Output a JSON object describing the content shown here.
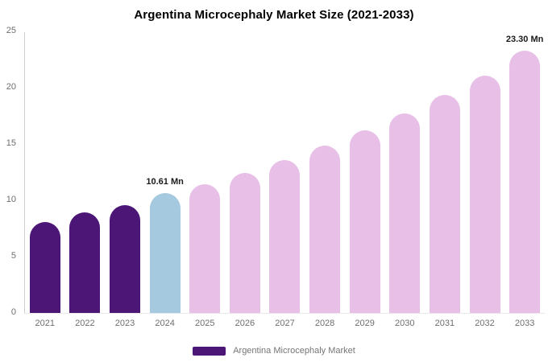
{
  "title": "Argentina Microcephaly Market Size (2021-2033)",
  "legend": {
    "label": "Argentina Microcephaly Market",
    "swatch_color": "#4C1677"
  },
  "colors": {
    "historical_purple": "#4C1677",
    "base_year_blue": "#A5C9DE",
    "forecast_pink": "#E7BFE7",
    "axis_text_gray": "#6e6e6e",
    "data_label_black": "#1a1a1a"
  },
  "chart_data": {
    "type": "bar",
    "title": "Argentina Microcephaly Market Size (2021-2033)",
    "categories": [
      "2021",
      "2022",
      "2023",
      "2024",
      "2025",
      "2026",
      "2027",
      "2028",
      "2029",
      "2030",
      "2031",
      "2032",
      "2033"
    ],
    "values": [
      8.1,
      8.9,
      9.6,
      10.61,
      11.45,
      12.45,
      13.6,
      14.85,
      16.2,
      17.7,
      19.35,
      21.1,
      23.3
    ],
    "bar_colors": [
      "#4C1677",
      "#4C1677",
      "#4C1677",
      "#A5C9DE",
      "#E7BFE7",
      "#E7BFE7",
      "#E7BFE7",
      "#E7BFE7",
      "#E7BFE7",
      "#E7BFE7",
      "#E7BFE7",
      "#E7BFE7",
      "#E7BFE7"
    ],
    "annotations": [
      {
        "category": "2024",
        "text": "10.61 Mn"
      },
      {
        "category": "2033",
        "text": "23.30 Mn"
      }
    ],
    "xlabel": "",
    "ylabel": "",
    "ylim": [
      0,
      25
    ],
    "yticks": [
      0,
      5,
      10,
      15,
      20,
      25
    ],
    "grid": false,
    "legend_position": "bottom",
    "unit": "Mn"
  }
}
